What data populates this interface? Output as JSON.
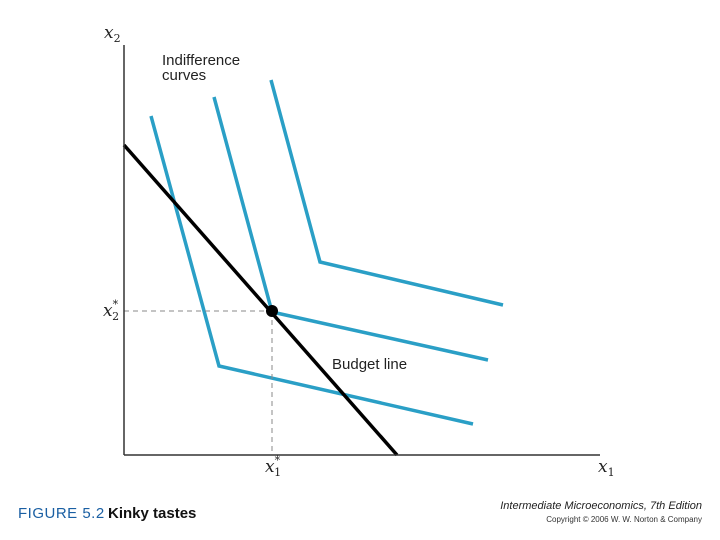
{
  "figure": {
    "number": "FIGURE 5.2",
    "title": "Kinky tastes"
  },
  "credits": {
    "book": "Intermediate Microeconomics, 7th Edition",
    "copyright": "Copyright © 2006 W. W. Norton & Company"
  },
  "diagram": {
    "x_axis": {
      "var": "x",
      "sub": "1"
    },
    "y_axis": {
      "var": "x",
      "sub": "2"
    },
    "opt_x": {
      "var": "x",
      "sub": "1",
      "sup": "*"
    },
    "opt_y": {
      "var": "x",
      "sub": "2",
      "sup": "*"
    },
    "indifference_label_line1": "Indifference",
    "indifference_label_line2": "curves",
    "budget_label": "Budget line",
    "colors": {
      "curves": "#2a9fc6",
      "budget": "#000000",
      "axes": "#333333",
      "dashed": "#888888"
    }
  }
}
